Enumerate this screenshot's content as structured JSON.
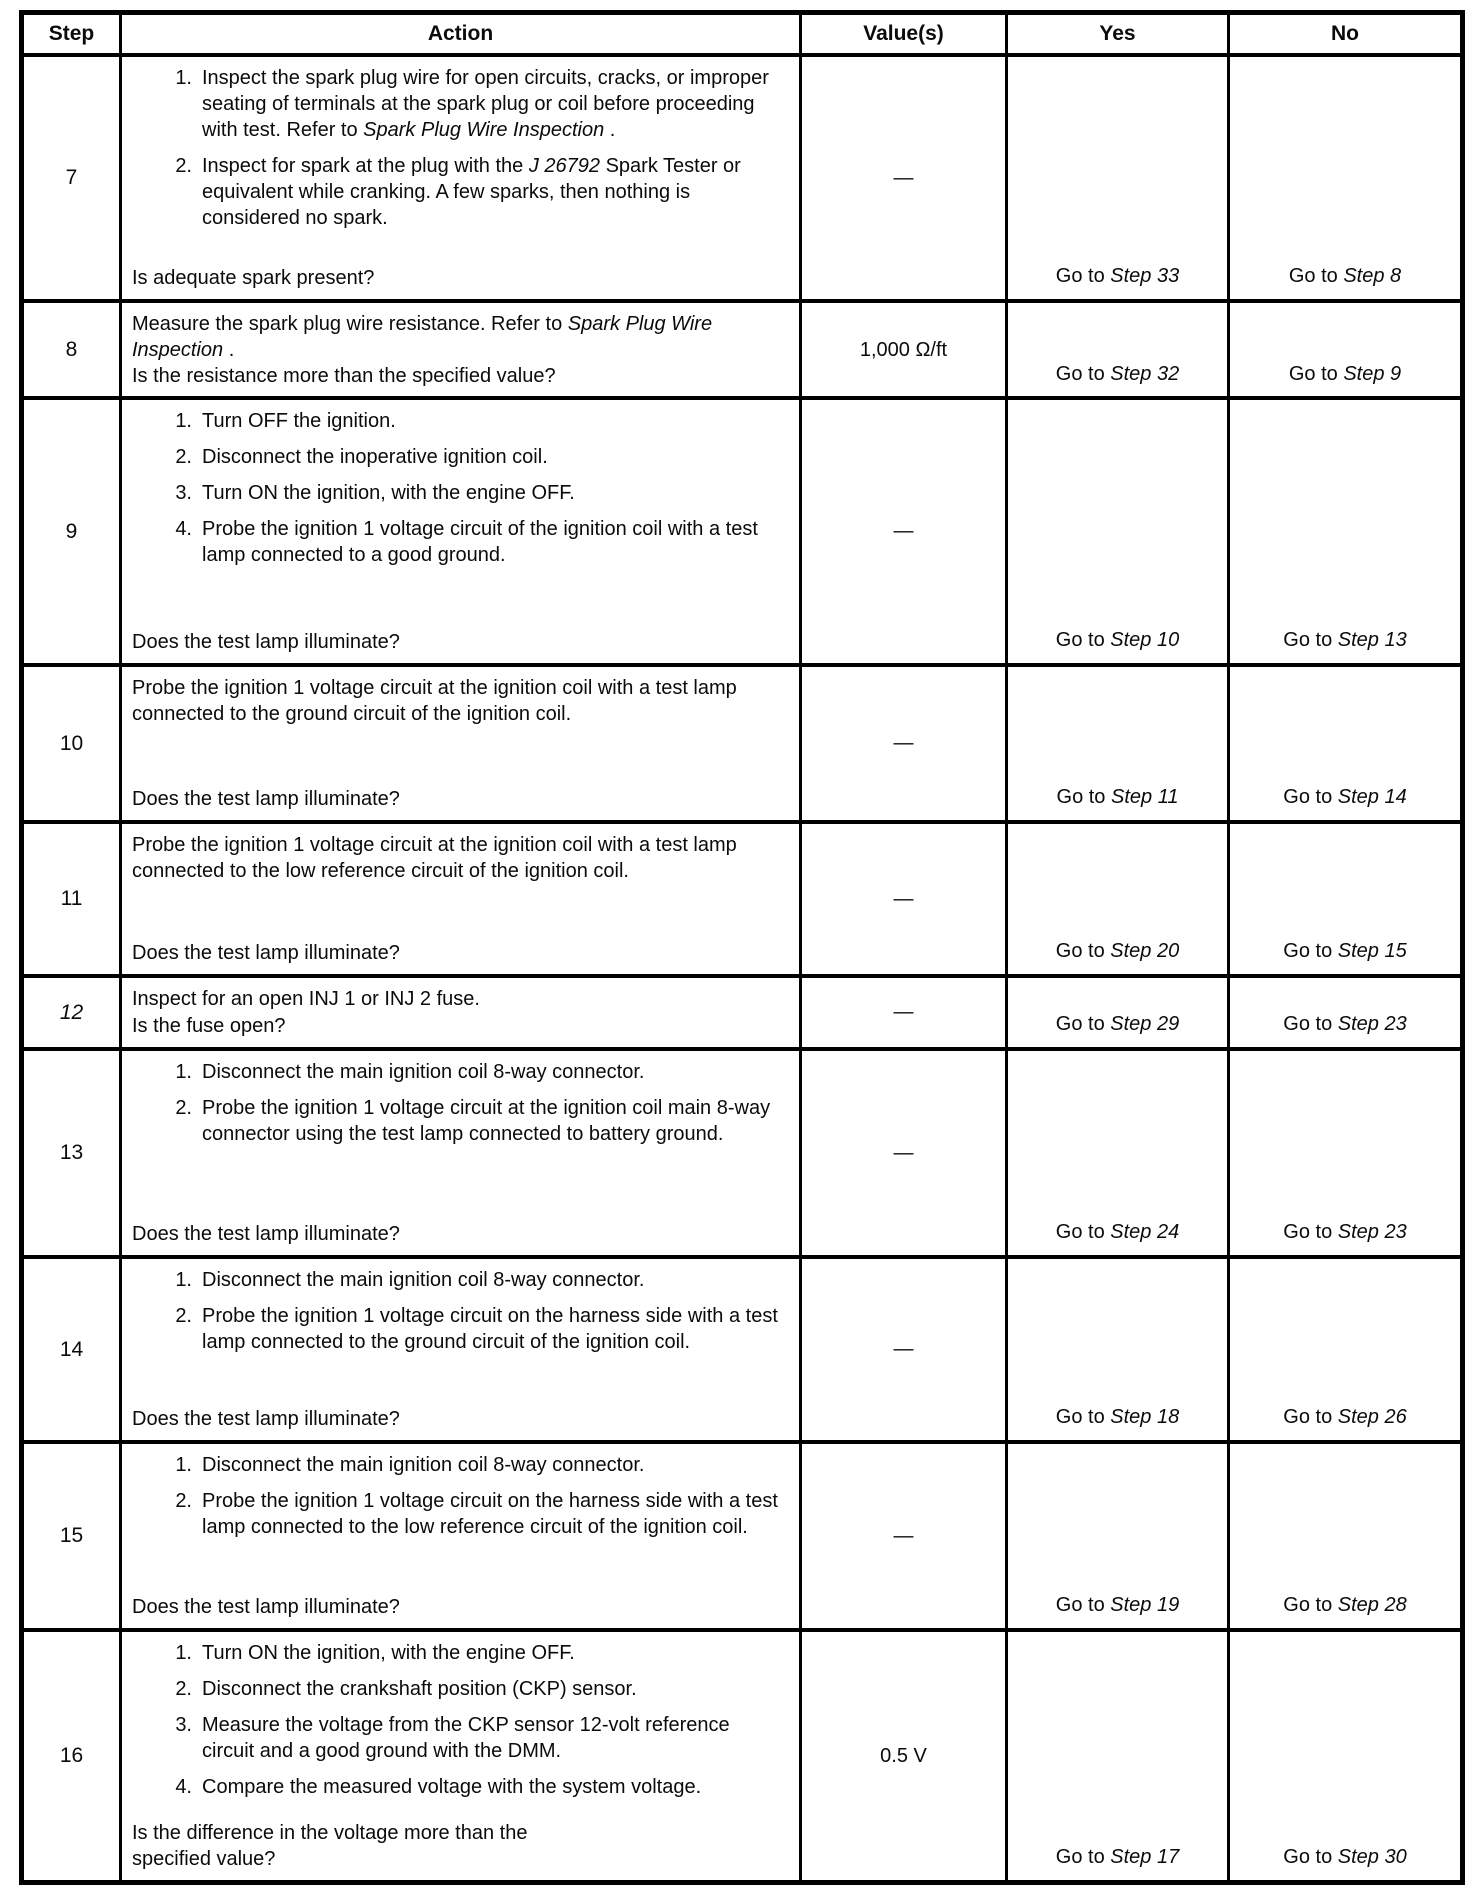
{
  "table": {
    "headers": {
      "step": "Step",
      "action": "Action",
      "values": "Value(s)",
      "yes": "Yes",
      "no": "No"
    },
    "rows": [
      {
        "step": "7",
        "step_italic": false,
        "list": [
          {
            "runs": [
              {
                "t": "Inspect the spark plug wire for open circuits, cracks, or improper seating of terminals at the spark plug or coil before proceeding with test. Refer to "
              },
              {
                "t": "Spark Plug Wire Inspection",
                "i": true
              },
              {
                "t": " ."
              }
            ]
          },
          {
            "runs": [
              {
                "t": "Inspect for spark at the plug with the "
              },
              {
                "t": "J 26792",
                "i": true
              },
              {
                "t": " Spark Tester or equivalent while cranking. A few sparks, then nothing is considered no spark."
              }
            ]
          }
        ],
        "question": "Is adequate spark present?",
        "value": "—",
        "yes": [
          {
            "t": "Go to "
          },
          {
            "t": "Step 33",
            "i": true
          }
        ],
        "no": [
          {
            "t": "Go to "
          },
          {
            "t": "Step 8",
            "i": true
          }
        ]
      },
      {
        "step": "8",
        "step_italic": false,
        "lead": [
          {
            "t": "Measure the spark plug wire resistance. Refer to "
          },
          {
            "t": "Spark Plug Wire Inspection",
            "i": true
          },
          {
            "t": " ."
          }
        ],
        "question": "Is the resistance more than the specified value?",
        "value": "1,000 Ω/ft",
        "yes": [
          {
            "t": "Go to "
          },
          {
            "t": "Step 32",
            "i": true
          }
        ],
        "no": [
          {
            "t": "Go to "
          },
          {
            "t": "Step 9",
            "i": true
          }
        ]
      },
      {
        "step": "9",
        "step_italic": false,
        "list": [
          {
            "runs": [
              {
                "t": "Turn OFF the ignition."
              }
            ]
          },
          {
            "runs": [
              {
                "t": "Disconnect the inoperative ignition coil."
              }
            ]
          },
          {
            "runs": [
              {
                "t": "Turn ON the ignition, with the engine OFF."
              }
            ]
          },
          {
            "runs": [
              {
                "t": "Probe the ignition 1 voltage circuit of the ignition coil with a test lamp connected to a good ground."
              }
            ]
          }
        ],
        "question": "Does the test lamp illuminate?",
        "value": "—",
        "yes": [
          {
            "t": "Go to "
          },
          {
            "t": "Step 10",
            "i": true
          }
        ],
        "no": [
          {
            "t": "Go to "
          },
          {
            "t": "Step 13",
            "i": true
          }
        ]
      },
      {
        "step": "10",
        "step_italic": false,
        "lead": [
          {
            "t": "Probe the ignition 1 voltage circuit at the ignition coil with a test lamp connected to the ground circuit of the ignition coil."
          }
        ],
        "question": "Does the test lamp illuminate?",
        "value": "—",
        "yes": [
          {
            "t": "Go to "
          },
          {
            "t": "Step 11",
            "i": true
          }
        ],
        "no": [
          {
            "t": "Go to "
          },
          {
            "t": "Step 14",
            "i": true
          }
        ]
      },
      {
        "step": "11",
        "step_italic": false,
        "lead": [
          {
            "t": "Probe the ignition 1 voltage circuit at the ignition coil with a test lamp connected to the low reference circuit of the ignition coil."
          }
        ],
        "question": "Does the test lamp illuminate?",
        "value": "—",
        "yes": [
          {
            "t": "Go to "
          },
          {
            "t": "Step 20",
            "i": true
          }
        ],
        "no": [
          {
            "t": "Go to "
          },
          {
            "t": "Step 15",
            "i": true
          }
        ]
      },
      {
        "step": "12",
        "step_italic": true,
        "lead": [
          {
            "t": "Inspect for an open INJ 1 or INJ 2 fuse."
          }
        ],
        "question": "Is the fuse open?",
        "value": "—",
        "yes": [
          {
            "t": "Go to "
          },
          {
            "t": "Step 29",
            "i": true
          }
        ],
        "no": [
          {
            "t": "Go to "
          },
          {
            "t": "Step 23",
            "i": true
          }
        ]
      },
      {
        "step": "13",
        "step_italic": false,
        "list": [
          {
            "runs": [
              {
                "t": "Disconnect the main ignition coil 8-way connector."
              }
            ]
          },
          {
            "runs": [
              {
                "t": "Probe the ignition 1 voltage circuit at the ignition coil main 8-way connector using the test lamp connected to battery ground."
              }
            ]
          }
        ],
        "question": "Does the test lamp illuminate?",
        "value": "—",
        "yes": [
          {
            "t": "Go to "
          },
          {
            "t": "Step 24",
            "i": true
          }
        ],
        "no": [
          {
            "t": "Go to "
          },
          {
            "t": "Step 23",
            "i": true
          }
        ]
      },
      {
        "step": "14",
        "step_italic": false,
        "list": [
          {
            "runs": [
              {
                "t": "Disconnect the main ignition coil 8-way connector."
              }
            ]
          },
          {
            "runs": [
              {
                "t": "Probe the ignition 1 voltage circuit on the harness side with a test lamp connected to the ground circuit of the ignition coil."
              }
            ]
          }
        ],
        "question": "Does the test lamp illuminate?",
        "value": "—",
        "yes": [
          {
            "t": "Go to "
          },
          {
            "t": "Step 18",
            "i": true
          }
        ],
        "no": [
          {
            "t": "Go to "
          },
          {
            "t": "Step 26",
            "i": true
          }
        ]
      },
      {
        "step": "15",
        "step_italic": false,
        "list": [
          {
            "runs": [
              {
                "t": "Disconnect the main ignition coil 8-way connector."
              }
            ]
          },
          {
            "runs": [
              {
                "t": "Probe the ignition 1 voltage circuit on the harness side with a test lamp connected to the low reference circuit of the ignition coil."
              }
            ]
          }
        ],
        "question": "Does the test lamp illuminate?",
        "value": "—",
        "yes": [
          {
            "t": "Go to "
          },
          {
            "t": "Step 19",
            "i": true
          }
        ],
        "no": [
          {
            "t": "Go to "
          },
          {
            "t": "Step 28",
            "i": true
          }
        ]
      },
      {
        "step": "16",
        "step_italic": false,
        "list": [
          {
            "runs": [
              {
                "t": "Turn ON the ignition, with the engine OFF."
              }
            ]
          },
          {
            "runs": [
              {
                "t": "Disconnect the crankshaft position (CKP) sensor."
              }
            ]
          },
          {
            "runs": [
              {
                "t": "Measure the voltage from the CKP sensor 12-volt reference circuit and a good ground with the DMM."
              }
            ]
          },
          {
            "runs": [
              {
                "t": "Compare the measured voltage with the system voltage."
              }
            ]
          }
        ],
        "question": "Is the difference in the voltage more than the\nspecified value?",
        "value": "0.5 V",
        "yes": [
          {
            "t": "Go to "
          },
          {
            "t": "Step 17",
            "i": true
          }
        ],
        "no": [
          {
            "t": "Go to "
          },
          {
            "t": "Step 30",
            "i": true
          }
        ]
      }
    ]
  }
}
